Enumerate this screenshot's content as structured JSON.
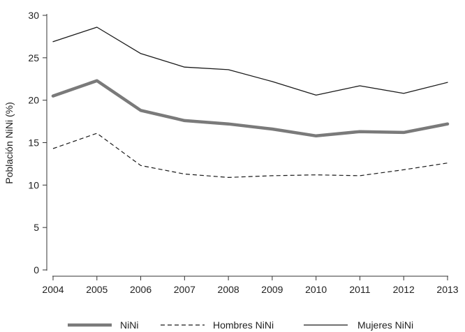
{
  "chart_data": {
    "type": "line",
    "title": "",
    "xlabel": "",
    "ylabel": "Población NiNi (%)",
    "x": [
      2004,
      2005,
      2006,
      2007,
      2008,
      2009,
      2010,
      2011,
      2012,
      2013
    ],
    "ylim": [
      0,
      30
    ],
    "yticks": [
      0,
      5,
      10,
      15,
      20,
      25,
      30
    ],
    "grid": false,
    "legend_position": "bottom",
    "series": [
      {
        "name": "NiNi",
        "style": "thick-solid",
        "color": "#7a7a7a",
        "values": [
          20.5,
          22.3,
          18.8,
          17.6,
          17.2,
          16.6,
          15.8,
          16.3,
          16.2,
          17.2
        ]
      },
      {
        "name": "Hombres NiNi",
        "style": "dashed",
        "color": "#1a1a1a",
        "values": [
          14.3,
          16.1,
          12.3,
          11.3,
          10.9,
          11.1,
          11.2,
          11.1,
          11.8,
          12.6
        ]
      },
      {
        "name": "Mujeres NiNi",
        "style": "thin-solid",
        "color": "#1a1a1a",
        "values": [
          26.9,
          28.6,
          25.5,
          23.9,
          23.6,
          22.2,
          20.6,
          21.7,
          20.8,
          22.1
        ]
      }
    ]
  }
}
